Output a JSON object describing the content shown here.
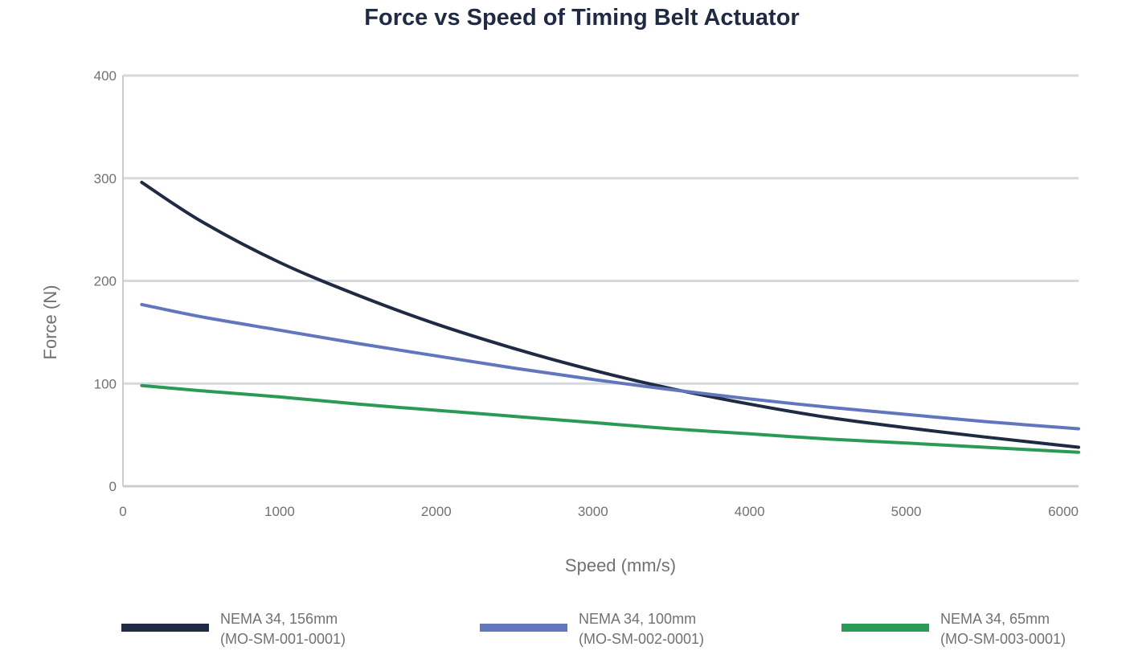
{
  "chart_data": {
    "type": "line",
    "title": "Force vs Speed of Timing Belt Actuator",
    "xlabel": "Speed (mm/s)",
    "ylabel": "Force (N)",
    "xlim": [
      0,
      6100
    ],
    "ylim": [
      0,
      400
    ],
    "x_ticks": [
      "0",
      "1000",
      "2000",
      "3000",
      "4000",
      "5000",
      "6000"
    ],
    "y_ticks": [
      "0",
      "100",
      "200",
      "300",
      "400"
    ],
    "grid": "horizontal",
    "legend_position": "bottom",
    "x": [
      120,
      500,
      1000,
      1500,
      2000,
      2500,
      3000,
      3500,
      4000,
      4500,
      5000,
      5500,
      6100
    ],
    "series": [
      {
        "name": "NEMA 34, 156mm",
        "code": "(MO-SM-001-0001)",
        "color": "#1f2a44",
        "values": [
          296,
          258,
          218,
          186,
          158,
          134,
          113,
          95,
          80,
          67,
          57,
          48,
          38
        ]
      },
      {
        "name": "NEMA 34, 100mm",
        "code": "(MO-SM-002-0001)",
        "color": "#6176bd",
        "values": [
          177,
          165,
          152,
          139,
          127,
          115,
          104,
          94,
          85,
          77,
          70,
          63,
          56
        ]
      },
      {
        "name": "NEMA 34, 65mm",
        "code": "(MO-SM-003-0001)",
        "color": "#2a9a55",
        "values": [
          98,
          93,
          87,
          80,
          74,
          68,
          62,
          56,
          51,
          46,
          42,
          38,
          33
        ]
      }
    ]
  }
}
